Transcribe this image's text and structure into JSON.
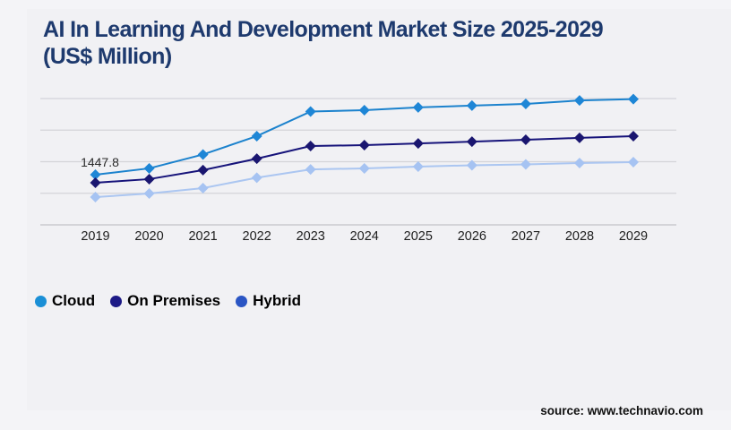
{
  "title": {
    "lines": [
      "AI In Learning And Development Market Size 2025-2029",
      "(US$ Million)"
    ]
  },
  "legend": {
    "items": [
      {
        "label": "Cloud",
        "dot_color": "#1a8fd6"
      },
      {
        "label": "On Premises",
        "dot_color": "#1d1a86"
      },
      {
        "label": "Hybrid",
        "dot_color": "#2a55c4"
      }
    ]
  },
  "source": "source: www.technavio.com",
  "colors": {
    "title_text": "#1e3a6e",
    "gridline": "#d4d4d9",
    "axis_line": "#c2c2c8",
    "tick_text": "#1d1d1d",
    "annotation_text": "#2a2a2a",
    "background": "#f4f4f7",
    "panel": "#f1f1f4"
  },
  "chart_data": {
    "type": "line",
    "title": "AI In Learning And Development Market Size 2025-2029 (US$ Million)",
    "x": [
      2019,
      2020,
      2021,
      2022,
      2023,
      2024,
      2025,
      2026,
      2027,
      2028,
      2029
    ],
    "xlabel": "",
    "ylabel": "US$ Million",
    "ylim": [
      0,
      3645
    ],
    "grid": "horizontal",
    "legend_position": "bottom-left",
    "series": [
      {
        "name": "Cloud",
        "line_color": "#1b82cd",
        "marker_color": "#1e86d6",
        "values": [
          1447.8,
          1630,
          2030,
          2560,
          3270,
          3310,
          3390,
          3440,
          3490,
          3590,
          3630
        ]
      },
      {
        "name": "On Premises",
        "line_color": "#16137a",
        "marker_color": "#1a1670",
        "values": [
          1215,
          1320,
          1580,
          1910,
          2275,
          2300,
          2350,
          2400,
          2455,
          2510,
          2560
        ]
      },
      {
        "name": "Hybrid",
        "line_color": "#abc6f1",
        "marker_color": "#a6c3f2",
        "values": [
          800,
          905,
          1060,
          1360,
          1600,
          1630,
          1680,
          1720,
          1745,
          1785,
          1810
        ]
      }
    ],
    "annotation": {
      "series_index": 0,
      "point_index": 0,
      "label": "1447.8"
    }
  }
}
